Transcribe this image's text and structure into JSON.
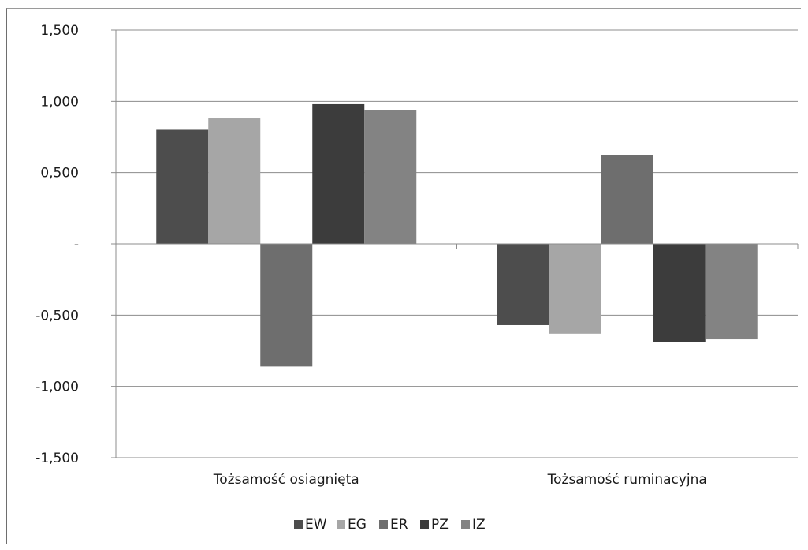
{
  "chart_data": {
    "type": "bar",
    "categories": [
      "Tożsamość osiagnięta",
      "Tożsamość ruminacyjna"
    ],
    "series": [
      {
        "name": "EW",
        "color": "#4d4d4d",
        "values": [
          0.8,
          -0.57
        ]
      },
      {
        "name": "EG",
        "color": "#a6a6a6",
        "values": [
          0.88,
          -0.63
        ]
      },
      {
        "name": "ER",
        "color": "#6e6e6e",
        "values": [
          -0.86,
          0.62
        ]
      },
      {
        "name": "PZ",
        "color": "#3c3c3c",
        "values": [
          0.98,
          -0.69
        ]
      },
      {
        "name": "IZ",
        "color": "#838383",
        "values": [
          0.94,
          -0.67
        ]
      }
    ],
    "yticks": [
      1.5,
      1.0,
      0.5,
      0,
      -0.5,
      -1.0,
      -1.5
    ],
    "ytick_labels": [
      "1,500",
      "1,000",
      "0,500",
      "-",
      "-0,500",
      "-1,000",
      "-1,500"
    ],
    "ylim": [
      -1.5,
      1.5
    ],
    "title": "",
    "xlabel": "",
    "ylabel": "",
    "grid": true,
    "legend_position": "bottom"
  }
}
